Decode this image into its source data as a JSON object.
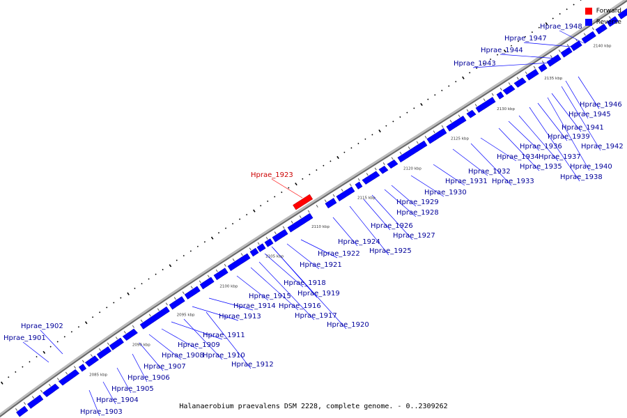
{
  "caption": "Halanaerobium praevalens DSM 2228, complete genome. - 0..2309262",
  "legend": [
    {
      "label": "Forward",
      "color": "#ff0000"
    },
    {
      "label": "Reverse",
      "color": "#0000ff"
    }
  ],
  "colors": {
    "forward": "#ff0000",
    "reverse": "#0000ff",
    "forward_label": "#cc0000",
    "reverse_label": "#000099",
    "backbone": "#888888"
  },
  "scale_labels": [
    "2085 kbp",
    "2090 kbp",
    "2095 kbp",
    "2100 kbp",
    "2105 kbp",
    "2110 kbp",
    "2115 kbp",
    "2120 kbp",
    "2125 kbp",
    "2130 kbp",
    "2135 kbp",
    "2140 kbp"
  ],
  "genes": [
    {
      "name": "Hprae_1901",
      "strand": "reverse"
    },
    {
      "name": "Hprae_1902",
      "strand": "reverse"
    },
    {
      "name": "Hprae_1903",
      "strand": "reverse"
    },
    {
      "name": "Hprae_1904",
      "strand": "reverse"
    },
    {
      "name": "Hprae_1905",
      "strand": "reverse"
    },
    {
      "name": "Hprae_1906",
      "strand": "reverse"
    },
    {
      "name": "Hprae_1907",
      "strand": "reverse"
    },
    {
      "name": "Hprae_1908",
      "strand": "reverse"
    },
    {
      "name": "Hprae_1909",
      "strand": "reverse"
    },
    {
      "name": "Hprae_1910",
      "strand": "reverse"
    },
    {
      "name": "Hprae_1911",
      "strand": "reverse"
    },
    {
      "name": "Hprae_1912",
      "strand": "reverse"
    },
    {
      "name": "Hprae_1913",
      "strand": "reverse"
    },
    {
      "name": "Hprae_1914",
      "strand": "reverse"
    },
    {
      "name": "Hprae_1915",
      "strand": "reverse"
    },
    {
      "name": "Hprae_1916",
      "strand": "reverse"
    },
    {
      "name": "Hprae_1917",
      "strand": "reverse"
    },
    {
      "name": "Hprae_1918",
      "strand": "reverse"
    },
    {
      "name": "Hprae_1919",
      "strand": "reverse"
    },
    {
      "name": "Hprae_1920",
      "strand": "reverse"
    },
    {
      "name": "Hprae_1921",
      "strand": "reverse"
    },
    {
      "name": "Hprae_1922",
      "strand": "reverse"
    },
    {
      "name": "Hprae_1923",
      "strand": "forward"
    },
    {
      "name": "Hprae_1924",
      "strand": "reverse"
    },
    {
      "name": "Hprae_1925",
      "strand": "reverse"
    },
    {
      "name": "Hprae_1926",
      "strand": "reverse"
    },
    {
      "name": "Hprae_1927",
      "strand": "reverse"
    },
    {
      "name": "Hprae_1928",
      "strand": "reverse"
    },
    {
      "name": "Hprae_1929",
      "strand": "reverse"
    },
    {
      "name": "Hprae_1930",
      "strand": "reverse"
    },
    {
      "name": "Hprae_1931",
      "strand": "reverse"
    },
    {
      "name": "Hprae_1932",
      "strand": "reverse"
    },
    {
      "name": "Hprae_1933",
      "strand": "reverse"
    },
    {
      "name": "Hprae_1934",
      "strand": "reverse"
    },
    {
      "name": "Hprae_1935",
      "strand": "reverse"
    },
    {
      "name": "Hprae_1936",
      "strand": "reverse"
    },
    {
      "name": "Hprae_1937",
      "strand": "reverse"
    },
    {
      "name": "Hprae_1938",
      "strand": "reverse"
    },
    {
      "name": "Hprae_1939",
      "strand": "reverse"
    },
    {
      "name": "Hprae_1940",
      "strand": "reverse"
    },
    {
      "name": "Hprae_1941",
      "strand": "reverse"
    },
    {
      "name": "Hprae_1942",
      "strand": "reverse"
    },
    {
      "name": "Hprae_1943",
      "strand": "reverse"
    },
    {
      "name": "Hprae_1944",
      "strand": "reverse"
    },
    {
      "name": "Hprae_1945",
      "strand": "reverse"
    },
    {
      "name": "Hprae_1946",
      "strand": "reverse"
    },
    {
      "name": "Hprae_1947",
      "strand": "reverse"
    },
    {
      "name": "Hprae_1948",
      "strand": "reverse"
    }
  ]
}
